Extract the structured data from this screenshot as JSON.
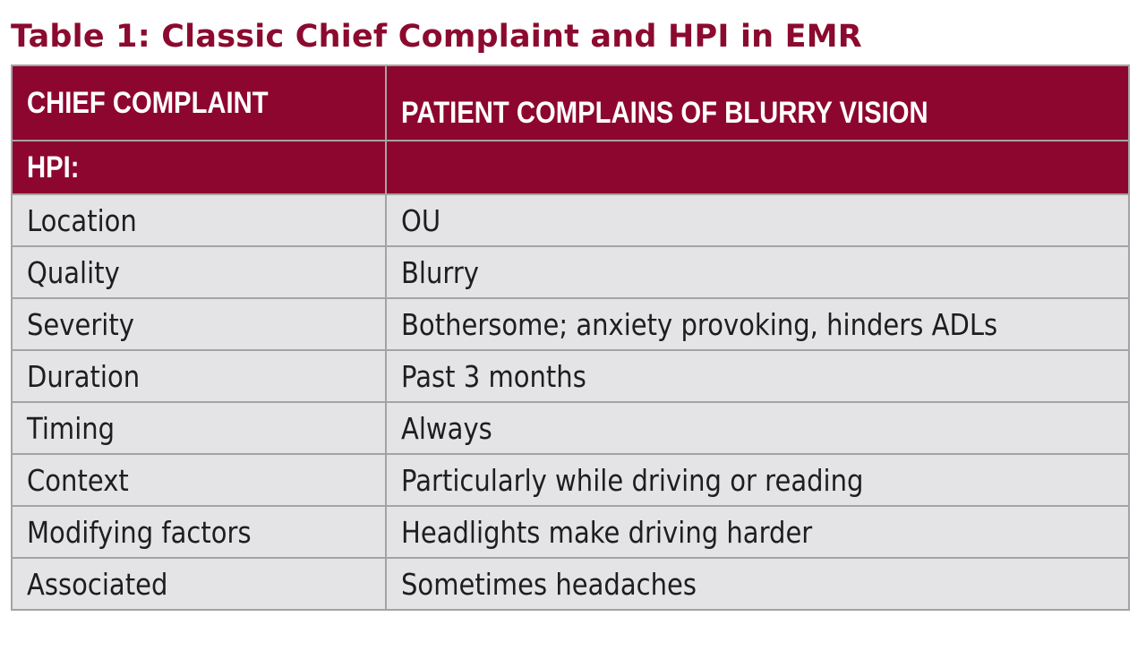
{
  "title": "Table 1: Classic Chief Complaint and HPI in EMR",
  "header": {
    "chief_complaint_label": "CHIEF COMPLAINT",
    "chief_complaint_value": "PATIENT COMPLAINS OF BLURRY VISION",
    "hpi_label": "HPI:",
    "hpi_value": ""
  },
  "rows": [
    {
      "label": "Location",
      "value": "OU"
    },
    {
      "label": "Quality",
      "value": "Blurry"
    },
    {
      "label": "Severity",
      "value": "Bothersome; anxiety provoking, hinders ADLs"
    },
    {
      "label": "Duration",
      "value": "Past 3 months"
    },
    {
      "label": "Timing",
      "value": "Always"
    },
    {
      "label": "Context",
      "value": "Particularly while driving or reading"
    },
    {
      "label": "Modifying factors",
      "value": "Headlights make driving harder"
    },
    {
      "label": "Associated",
      "value": "Sometimes headaches"
    }
  ],
  "colors": {
    "title": "#8b0a2f",
    "header_bg": "#8d0630",
    "row_bg": "#e4e4e6",
    "border": "#a3a3a3"
  }
}
